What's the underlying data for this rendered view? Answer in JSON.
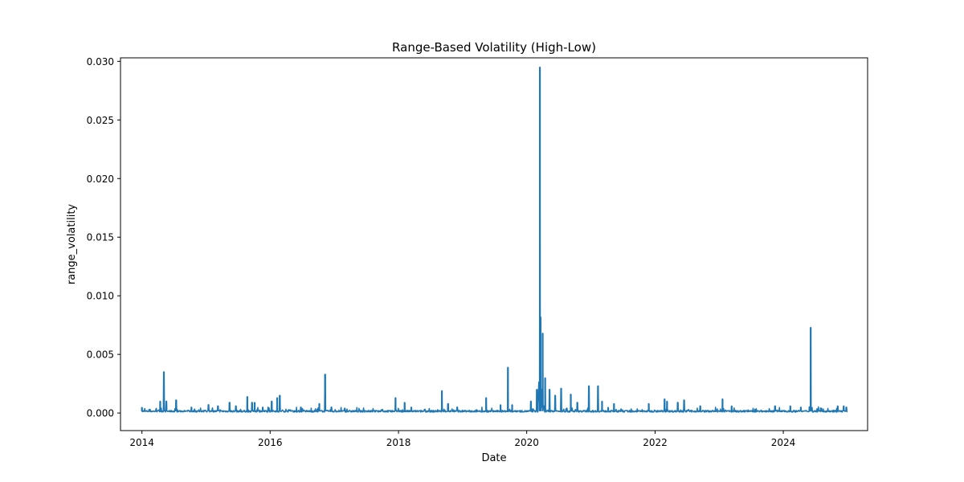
{
  "chart_data": {
    "type": "line",
    "title": "Range-Based Volatility (High-Low)",
    "xlabel": "Date",
    "ylabel": "range_volatility",
    "xlim": [
      "2013-09-01",
      "2025-04-25"
    ],
    "ylim": [
      -0.0015,
      0.0303
    ],
    "x_ticks": [
      {
        "label": "2014",
        "value": "2014-01-01"
      },
      {
        "label": "2016",
        "value": "2016-01-01"
      },
      {
        "label": "2018",
        "value": "2018-01-01"
      },
      {
        "label": "2020",
        "value": "2020-01-01"
      },
      {
        "label": "2022",
        "value": "2022-01-01"
      },
      {
        "label": "2024",
        "value": "2024-01-01"
      }
    ],
    "y_ticks": [
      {
        "label": "0.000",
        "value": 0.0
      },
      {
        "label": "0.005",
        "value": 0.005
      },
      {
        "label": "0.010",
        "value": 0.01
      },
      {
        "label": "0.015",
        "value": 0.015
      },
      {
        "label": "0.020",
        "value": 0.02
      },
      {
        "label": "0.025",
        "value": 0.025
      },
      {
        "label": "0.030",
        "value": 0.03
      }
    ],
    "grid": false,
    "series_color": "#1f77b4",
    "baseline": 0.00015,
    "spikes": [
      [
        "2014-01-01",
        0.0005
      ],
      [
        "2014-04-15",
        0.001
      ],
      [
        "2014-05-06",
        0.0035
      ],
      [
        "2014-05-20",
        0.001
      ],
      [
        "2014-07-15",
        0.0011
      ],
      [
        "2014-10-10",
        0.0005
      ],
      [
        "2015-01-15",
        0.0007
      ],
      [
        "2015-03-10",
        0.0006
      ],
      [
        "2015-05-15",
        0.0009
      ],
      [
        "2015-06-20",
        0.0006
      ],
      [
        "2015-08-24",
        0.0014
      ],
      [
        "2015-09-20",
        0.0009
      ],
      [
        "2015-10-05",
        0.0009
      ],
      [
        "2015-11-20",
        0.0005
      ],
      [
        "2016-01-10",
        0.001
      ],
      [
        "2016-02-10",
        0.0013
      ],
      [
        "2016-02-25",
        0.0015
      ],
      [
        "2016-06-24",
        0.0005
      ],
      [
        "2016-10-07",
        0.0008
      ],
      [
        "2016-11-09",
        0.0033
      ],
      [
        "2016-12-15",
        0.0005
      ],
      [
        "2017-03-01",
        0.0004
      ],
      [
        "2017-10-01",
        0.0003
      ],
      [
        "2017-12-15",
        0.0013
      ],
      [
        "2018-02-05",
        0.0009
      ],
      [
        "2018-03-15",
        0.0005
      ],
      [
        "2018-09-05",
        0.0019
      ],
      [
        "2018-10-10",
        0.0008
      ],
      [
        "2018-12-01",
        0.0005
      ],
      [
        "2019-05-15",
        0.0013
      ],
      [
        "2019-08-05",
        0.0007
      ],
      [
        "2019-09-16",
        0.0039
      ],
      [
        "2019-10-10",
        0.0007
      ],
      [
        "2020-01-25",
        0.001
      ],
      [
        "2020-02-28",
        0.002
      ],
      [
        "2020-03-16",
        0.0295
      ],
      [
        "2020-03-20",
        0.0082
      ],
      [
        "2020-04-01",
        0.0068
      ],
      [
        "2020-04-15",
        0.003
      ],
      [
        "2020-05-10",
        0.002
      ],
      [
        "2020-06-11",
        0.0015
      ],
      [
        "2020-07-15",
        0.0021
      ],
      [
        "2020-09-08",
        0.0016
      ],
      [
        "2020-10-15",
        0.0009
      ],
      [
        "2020-12-20",
        0.0023
      ],
      [
        "2021-02-10",
        0.0023
      ],
      [
        "2021-03-05",
        0.001
      ],
      [
        "2021-05-12",
        0.0008
      ],
      [
        "2021-11-26",
        0.0008
      ],
      [
        "2022-02-24",
        0.0012
      ],
      [
        "2022-03-10",
        0.001
      ],
      [
        "2022-05-10",
        0.0009
      ],
      [
        "2022-06-15",
        0.0011
      ],
      [
        "2022-09-15",
        0.0006
      ],
      [
        "2023-01-20",
        0.0012
      ],
      [
        "2023-03-13",
        0.0006
      ],
      [
        "2023-11-15",
        0.0006
      ],
      [
        "2024-02-10",
        0.0006
      ],
      [
        "2024-04-10",
        0.0005
      ],
      [
        "2024-06-05",
        0.0073
      ],
      [
        "2024-08-05",
        0.0004
      ],
      [
        "2024-11-06",
        0.0006
      ],
      [
        "2024-12-10",
        0.0006
      ],
      [
        "2024-12-25",
        0.0005
      ]
    ],
    "x_end": "2024-12-31"
  }
}
